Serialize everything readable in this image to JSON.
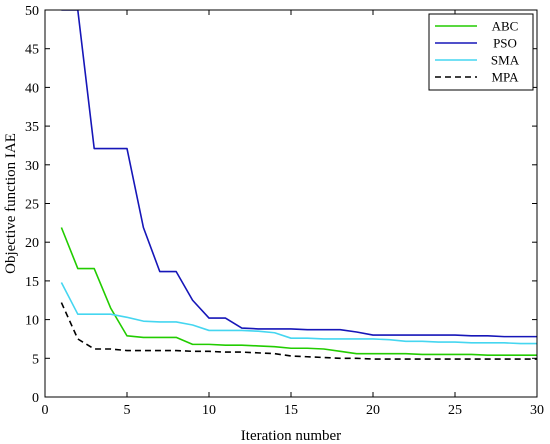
{
  "chart_data": {
    "type": "line",
    "title": "",
    "xlabel": "Iteration number",
    "ylabel": "Objective function IAE",
    "xlim": [
      0,
      30
    ],
    "ylim": [
      0,
      50
    ],
    "xticks": [
      0,
      5,
      10,
      15,
      20,
      25,
      30
    ],
    "yticks": [
      0,
      5,
      10,
      15,
      20,
      25,
      30,
      35,
      40,
      45,
      50
    ],
    "grid": false,
    "legend_position": "top-right",
    "series": [
      {
        "name": "ABC",
        "color": "#22cc00",
        "style": "solid",
        "x": [
          1,
          2,
          3,
          4,
          5,
          6,
          7,
          8,
          9,
          10,
          11,
          12,
          13,
          14,
          15,
          16,
          17,
          18,
          19,
          20,
          21,
          22,
          23,
          24,
          25,
          26,
          27,
          28,
          29,
          30
        ],
        "y": [
          21.9,
          16.6,
          16.6,
          11.5,
          7.9,
          7.7,
          7.7,
          7.7,
          6.8,
          6.8,
          6.7,
          6.7,
          6.6,
          6.5,
          6.3,
          6.3,
          6.2,
          5.9,
          5.6,
          5.6,
          5.6,
          5.6,
          5.5,
          5.5,
          5.5,
          5.5,
          5.4,
          5.4,
          5.4,
          5.4
        ]
      },
      {
        "name": "PSO",
        "color": "#1616b8",
        "style": "solid",
        "x": [
          1,
          2,
          3,
          4,
          5,
          6,
          7,
          8,
          9,
          10,
          11,
          12,
          13,
          14,
          15,
          16,
          17,
          18,
          19,
          20,
          21,
          22,
          23,
          24,
          25,
          26,
          27,
          28,
          29,
          30
        ],
        "y": [
          50,
          50,
          32.1,
          32.1,
          32.1,
          21.9,
          16.2,
          16.2,
          12.5,
          10.2,
          10.2,
          8.9,
          8.8,
          8.8,
          8.8,
          8.7,
          8.7,
          8.7,
          8.4,
          8.0,
          8.0,
          8.0,
          8.0,
          8.0,
          8.0,
          7.9,
          7.9,
          7.8,
          7.8,
          7.8
        ]
      },
      {
        "name": "SMA",
        "color": "#45d6f0",
        "style": "solid",
        "x": [
          1,
          2,
          3,
          4,
          5,
          6,
          7,
          8,
          9,
          10,
          11,
          12,
          13,
          14,
          15,
          16,
          17,
          18,
          19,
          20,
          21,
          22,
          23,
          24,
          25,
          26,
          27,
          28,
          29,
          30
        ],
        "y": [
          14.8,
          10.7,
          10.7,
          10.7,
          10.3,
          9.8,
          9.7,
          9.7,
          9.3,
          8.6,
          8.6,
          8.6,
          8.5,
          8.3,
          7.6,
          7.6,
          7.5,
          7.5,
          7.5,
          7.5,
          7.4,
          7.2,
          7.2,
          7.1,
          7.1,
          7.0,
          7.0,
          7.0,
          6.9,
          6.9
        ]
      },
      {
        "name": "MPA",
        "color": "#000000",
        "style": "dashed",
        "x": [
          1,
          2,
          3,
          4,
          5,
          6,
          7,
          8,
          9,
          10,
          11,
          12,
          13,
          14,
          15,
          16,
          17,
          18,
          19,
          20,
          21,
          22,
          23,
          24,
          25,
          26,
          27,
          28,
          29,
          30
        ],
        "y": [
          12.2,
          7.5,
          6.2,
          6.2,
          6.0,
          6.0,
          6.0,
          6.0,
          5.9,
          5.9,
          5.8,
          5.8,
          5.7,
          5.6,
          5.3,
          5.2,
          5.1,
          5.0,
          5.0,
          4.9,
          4.9,
          4.9,
          4.9,
          4.9,
          4.9,
          4.9,
          4.9,
          4.9,
          4.9,
          4.9
        ]
      }
    ]
  }
}
